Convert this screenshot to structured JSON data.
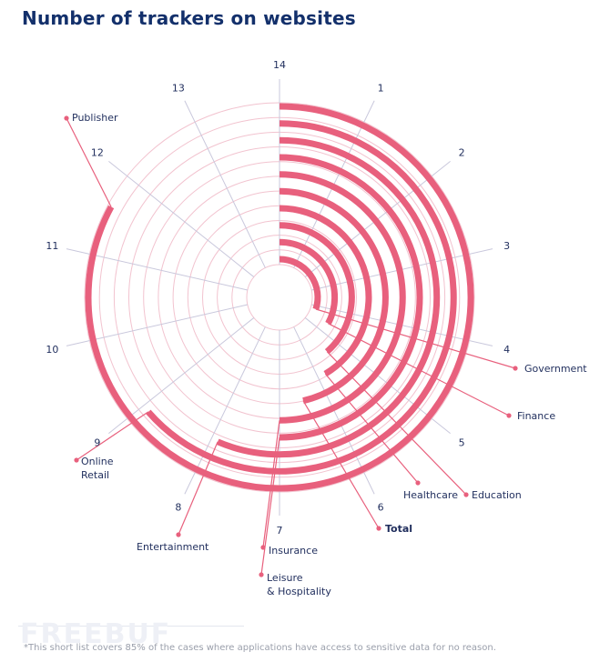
{
  "title": "Number of trackers on websites",
  "footnote": "*This short list covers 85% of the cases where applications have access to sensitive data for no reason.",
  "watermark": "FREEBUF",
  "colors": {
    "accent": "#e8607d",
    "title": "#13306b",
    "grid": "#f2c3cf",
    "spoke": "#c9c8dc",
    "label": "#1f2d5c"
  },
  "chart_data": {
    "type": "radial_bar",
    "title": "Number of trackers on websites",
    "axis_max": 14,
    "ticks": [
      1,
      2,
      3,
      4,
      5,
      6,
      7,
      8,
      9,
      10,
      11,
      12,
      13,
      14
    ],
    "grid_rings": 12,
    "series": [
      {
        "name": "Government",
        "value": 4.2
      },
      {
        "name": "Finance",
        "value": 4.6
      },
      {
        "name": "Education",
        "value": 5.4
      },
      {
        "name": "Healthcare",
        "value": 5.8
      },
      {
        "name": "Total",
        "value": 6.5
      },
      {
        "name": "Insurance",
        "value": 7.0
      },
      {
        "name": "Leisure & Hospitality",
        "value": 7.0
      },
      {
        "name": "Entertainment",
        "value": 7.9
      },
      {
        "name": "Online Retail",
        "value": 8.9
      },
      {
        "name": "Publisher",
        "value": 11.6
      }
    ]
  }
}
